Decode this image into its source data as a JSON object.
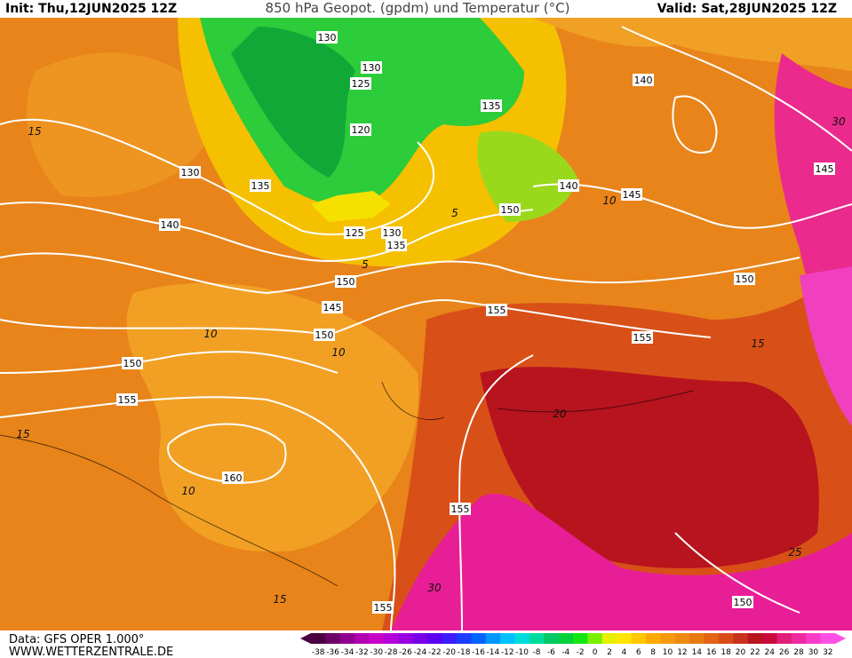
{
  "header": {
    "init": "Init: Thu,12JUN2025 12Z",
    "title": "850 hPa Geopot. (gpdm) und Temperatur (°C)",
    "valid": "Valid: Sat,28JUN2025 12Z"
  },
  "footer": {
    "source": "Data: GFS OPER 1.000°",
    "website": "WWW.WETTERZENTRALE.DE"
  },
  "geopotential_labels": [
    130,
    130,
    125,
    120,
    135,
    130,
    135,
    140,
    125,
    130,
    135,
    140,
    145,
    150,
    140,
    145,
    150,
    145,
    150,
    150,
    155,
    155,
    155,
    150,
    160,
    155,
    155,
    150
  ],
  "temperature_labels": [
    15,
    10,
    5,
    5,
    10,
    10,
    15,
    10,
    20,
    15,
    30,
    25,
    30,
    15
  ],
  "colorbar": {
    "labels": [
      -38,
      -36,
      -34,
      -32,
      -30,
      -28,
      -26,
      -24,
      -22,
      -20,
      -18,
      -16,
      -14,
      -12,
      -10,
      -8,
      -6,
      -4,
      -2,
      0,
      2,
      4,
      6,
      8,
      10,
      12,
      14,
      16,
      18,
      20,
      22,
      24,
      26,
      28,
      30,
      32
    ],
    "colors": [
      "#4a0040",
      "#6e006a",
      "#900090",
      "#b000b0",
      "#c800c8",
      "#b400d8",
      "#9600e0",
      "#7800e8",
      "#5a00f0",
      "#3c1cff",
      "#1c3cff",
      "#0064ff",
      "#0096ff",
      "#00c0ff",
      "#00dcdc",
      "#00dca0",
      "#00c864",
      "#00d23c",
      "#14e614",
      "#78f000",
      "#e6f000",
      "#ffe600",
      "#ffc800",
      "#ffaa00",
      "#f59a10",
      "#ee8a12",
      "#e87a12",
      "#e06414",
      "#d84c18",
      "#c8321c",
      "#b8141e",
      "#c80a3c",
      "#e01e78",
      "#f028a0",
      "#fa3cc8",
      "#ff50e6"
    ]
  }
}
